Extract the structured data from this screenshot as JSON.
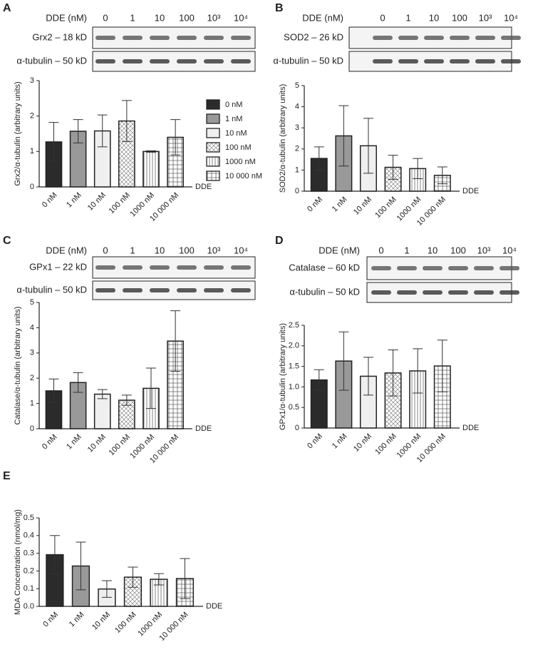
{
  "chart_data": [
    {
      "type": "bar",
      "panel": "A",
      "ylabel": "Grx2/α-tubulin (arbitrary units)",
      "xlabel": "DDE",
      "categories": [
        "0 nM",
        "1 nM",
        "10 nM",
        "100 nM",
        "1000 nM",
        "10 000 nM"
      ],
      "values": [
        1.27,
        1.57,
        1.58,
        1.86,
        1.0,
        1.4
      ],
      "errors": [
        0.55,
        0.33,
        0.45,
        0.58,
        0.02,
        0.5
      ],
      "colors": [
        "#2b2b2b",
        "#999999",
        "#efefef",
        "#ffffff",
        "#ffffff",
        "#ffffff"
      ],
      "hatch": [
        null,
        null,
        null,
        "cross",
        "vertical",
        "grid"
      ],
      "ylim": [
        0,
        3
      ],
      "yticks": [
        0,
        1,
        2,
        3
      ],
      "legend": true,
      "blot": {
        "title": "DDE (nM)",
        "lanes": [
          "0",
          "1",
          "10",
          "100",
          "10³",
          "10⁴"
        ],
        "rows": [
          "Grx2 – 18 kD",
          "α-tubulin – 50 kD"
        ]
      }
    },
    {
      "type": "bar",
      "panel": "B",
      "ylabel": "SOD2/α-tubulin (arbitrary units)",
      "xlabel": "DDE",
      "categories": [
        "0 nM",
        "1 nM",
        "10 nM",
        "100 nM",
        "1000 nM",
        "10 000 nM"
      ],
      "values": [
        1.55,
        2.62,
        2.15,
        1.13,
        1.07,
        0.75
      ],
      "errors": [
        0.55,
        1.43,
        1.3,
        0.57,
        0.48,
        0.4
      ],
      "colors": [
        "#2b2b2b",
        "#999999",
        "#efefef",
        "#ffffff",
        "#ffffff",
        "#ffffff"
      ],
      "hatch": [
        null,
        null,
        null,
        "cross",
        "vertical",
        "grid"
      ],
      "ylim": [
        0,
        5
      ],
      "yticks": [
        0,
        1,
        2,
        3,
        4,
        5
      ],
      "blot": {
        "title": "DDE (nM)",
        "lanes": [
          "0",
          "1",
          "10",
          "100",
          "10³",
          "10⁴"
        ],
        "rows": [
          "SOD2 – 26 kD",
          "α-tubulin – 50 kD"
        ]
      }
    },
    {
      "type": "bar",
      "panel": "C",
      "ylabel": "Catalase/α-tubulin (arbitrary units)",
      "xlabel": "DDE",
      "categories": [
        "0 nM",
        "1 nM",
        "10 nM",
        "100 nM",
        "1000 nM",
        "10 000 nM"
      ],
      "values": [
        1.5,
        1.83,
        1.37,
        1.13,
        1.6,
        3.47
      ],
      "errors": [
        0.47,
        0.39,
        0.18,
        0.2,
        0.8,
        1.2
      ],
      "colors": [
        "#2b2b2b",
        "#999999",
        "#efefef",
        "#ffffff",
        "#ffffff",
        "#ffffff"
      ],
      "hatch": [
        null,
        null,
        null,
        "cross",
        "vertical",
        "grid"
      ],
      "ylim": [
        0,
        5
      ],
      "yticks": [
        0,
        1,
        2,
        3,
        4,
        5
      ],
      "blot": {
        "title": "DDE (nM)",
        "lanes": [
          "0",
          "1",
          "10",
          "100",
          "10³",
          "10⁴"
        ],
        "rows": [
          "GPx1 – 22 kD",
          "α-tubulin – 50 kD"
        ]
      }
    },
    {
      "type": "bar",
      "panel": "D",
      "ylabel": "GPx1/α-tubulin (arbitrary units)",
      "xlabel": "DDE",
      "categories": [
        "0 nM",
        "1 nM",
        "10 nM",
        "100 nM",
        "1000 nM",
        "10 000 nM"
      ],
      "values": [
        1.17,
        1.63,
        1.26,
        1.34,
        1.39,
        1.51
      ],
      "errors": [
        0.25,
        0.71,
        0.46,
        0.56,
        0.54,
        0.63
      ],
      "colors": [
        "#2b2b2b",
        "#999999",
        "#efefef",
        "#ffffff",
        "#ffffff",
        "#ffffff"
      ],
      "hatch": [
        null,
        null,
        null,
        "cross",
        "vertical",
        "grid"
      ],
      "ylim": [
        0,
        2.5
      ],
      "yticks": [
        0,
        0.5,
        {
          "value": 1,
          "label": "1.0"
        },
        1.5,
        {
          "value": 2,
          "label": "2.0"
        },
        2.5
      ],
      "blot": {
        "title": "DDE (nM)",
        "lanes": [
          "0",
          "1",
          "10",
          "100",
          "10³",
          "10⁴"
        ],
        "rows": [
          "Catalase – 60 kD",
          "α-tubulin – 50 kD"
        ]
      }
    },
    {
      "type": "bar",
      "panel": "E",
      "ylabel": "MDA Concentration (nmol/mg)",
      "xlabel": "DDE",
      "categories": [
        "0 nM",
        "1 nM",
        "10 nM",
        "100 nM",
        "1000 nM",
        "10 000 nM"
      ],
      "values": [
        0.292,
        0.228,
        0.098,
        0.165,
        0.153,
        0.157
      ],
      "errors": [
        0.108,
        0.135,
        0.047,
        0.057,
        0.032,
        0.113
      ],
      "colors": [
        "#2b2b2b",
        "#999999",
        "#efefef",
        "#ffffff",
        "#ffffff",
        "#ffffff"
      ],
      "hatch": [
        null,
        null,
        null,
        "cross",
        "vertical",
        "grid"
      ],
      "ylim": [
        0,
        0.5
      ],
      "yticks": [
        {
          "value": 0,
          "label": "0.0"
        },
        0.1,
        0.2,
        0.3,
        0.4,
        0.5
      ]
    }
  ]
}
